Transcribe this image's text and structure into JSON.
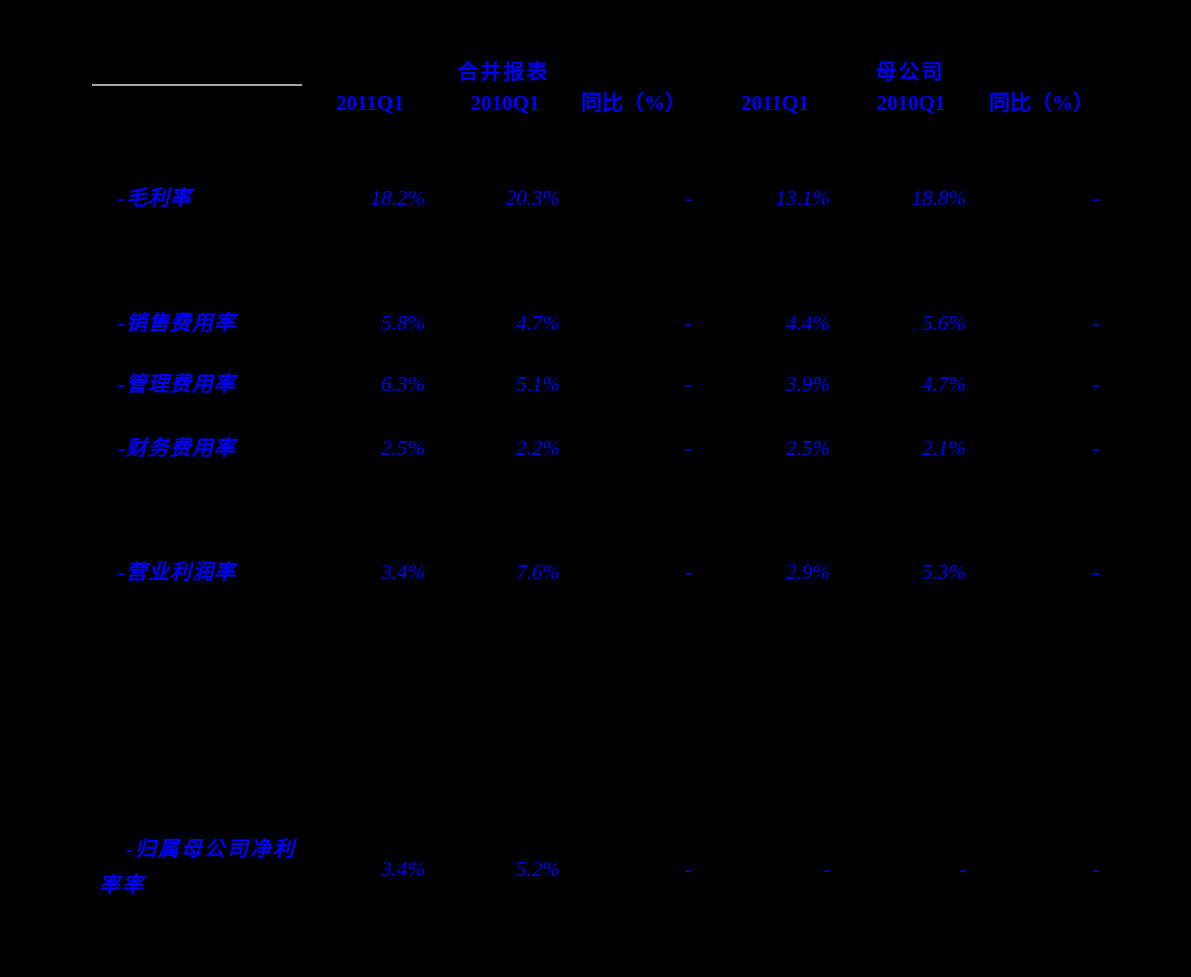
{
  "colors": {
    "background": "#000000",
    "text": "#0000FF",
    "divider": "#A6A6A6"
  },
  "table": {
    "group_headers": [
      {
        "label": "合并报表"
      },
      {
        "label": "母公司"
      }
    ],
    "column_headers": [
      "2011Q1",
      "2010Q1",
      "同比（%）",
      "2011Q1",
      "2010Q1",
      "同比（%）"
    ],
    "rows": [
      {
        "label": "-毛利率",
        "values": [
          "18.2%",
          "20.3%",
          "-",
          "13.1%",
          "18.8%",
          "-"
        ]
      },
      {
        "label": "-销售费用率",
        "values": [
          "5.8%",
          "4.7%",
          "-",
          "4.4%",
          "5.6%",
          "-"
        ]
      },
      {
        "label": "-管理费用率",
        "values": [
          "6.3%",
          "5.1%",
          "-",
          "3.9%",
          "4.7%",
          "-"
        ]
      },
      {
        "label": "-财务费用率",
        "values": [
          "2.5%",
          "2.2%",
          "-",
          "2.5%",
          "2.1%",
          "-"
        ]
      },
      {
        "label": "-营业利润率",
        "values": [
          "3.4%",
          "7.6%",
          "-",
          "2.9%",
          "5.3%",
          "-"
        ]
      },
      {
        "label_line1": "-归属母公司净利",
        "label_line2": "率率",
        "values": [
          "3.4%",
          "5.2%",
          "-",
          "-",
          "-",
          "-"
        ]
      }
    ]
  }
}
